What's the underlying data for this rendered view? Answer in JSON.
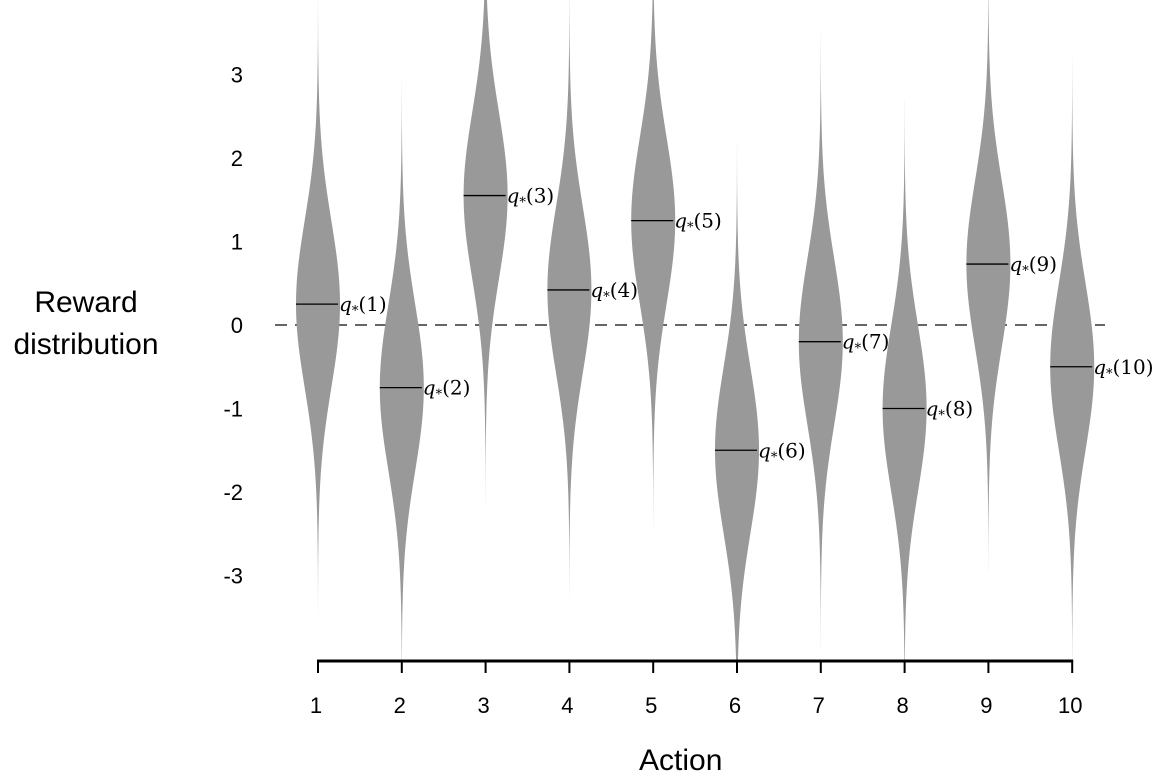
{
  "chart_data": {
    "type": "violin",
    "ylabel_lines": [
      "Reward",
      "distribution"
    ],
    "xlabel": "Action",
    "categories": [
      "1",
      "2",
      "3",
      "4",
      "5",
      "6",
      "7",
      "8",
      "9",
      "10"
    ],
    "means": [
      0.25,
      -0.75,
      1.55,
      0.42,
      1.25,
      -1.5,
      -0.2,
      -1.0,
      0.73,
      -0.5
    ],
    "series_labels": [
      {
        "q": "q",
        "sub": "*",
        "arg": "(1)"
      },
      {
        "q": "q",
        "sub": "*",
        "arg": "(2)"
      },
      {
        "q": "q",
        "sub": "*",
        "arg": "(3)"
      },
      {
        "q": "q",
        "sub": "*",
        "arg": "(4)"
      },
      {
        "q": "q",
        "sub": "*",
        "arg": "(5)"
      },
      {
        "q": "q",
        "sub": "*",
        "arg": "(6)"
      },
      {
        "q": "q",
        "sub": "*",
        "arg": "(7)"
      },
      {
        "q": "q",
        "sub": "*",
        "arg": "(8)"
      },
      {
        "q": "q",
        "sub": "*",
        "arg": "(9)"
      },
      {
        "q": "q",
        "sub": "*",
        "arg": "(10)"
      }
    ],
    "std": 1.0,
    "yticks": [
      3,
      2,
      1,
      0,
      -1,
      -2,
      -3
    ],
    "ytick_labels": [
      "3",
      "2",
      "1",
      "0",
      "-1",
      "-2",
      "-3"
    ],
    "ylim": [
      -4,
      3.9
    ],
    "zero_line": "dashed",
    "colors": {
      "violin": "#999999",
      "axis": "#000000",
      "zero_line": "#333333"
    }
  }
}
